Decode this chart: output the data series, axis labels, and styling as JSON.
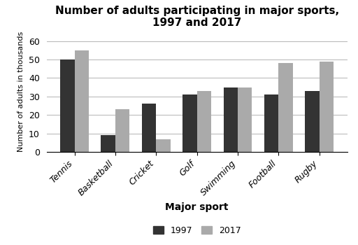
{
  "title": "Number of adults participating in major sports,\n1997 and 2017",
  "xlabel": "Major sport",
  "ylabel": "Number of adults in thousands",
  "categories": [
    "Tennis",
    "Basketball",
    "Cricket",
    "Golf",
    "Swimming",
    "Football",
    "Rugby"
  ],
  "values_1997": [
    50,
    9,
    26,
    31,
    35,
    31,
    33
  ],
  "values_2017": [
    55,
    23,
    7,
    33,
    35,
    48,
    49
  ],
  "color_1997": "#333333",
  "color_2017": "#aaaaaa",
  "ylim": [
    0,
    65
  ],
  "yticks": [
    0,
    10,
    20,
    30,
    40,
    50,
    60
  ],
  "bar_width": 0.35,
  "legend_labels": [
    "1997",
    "2017"
  ],
  "title_fontsize": 11,
  "label_fontsize": 10,
  "tick_fontsize": 9
}
